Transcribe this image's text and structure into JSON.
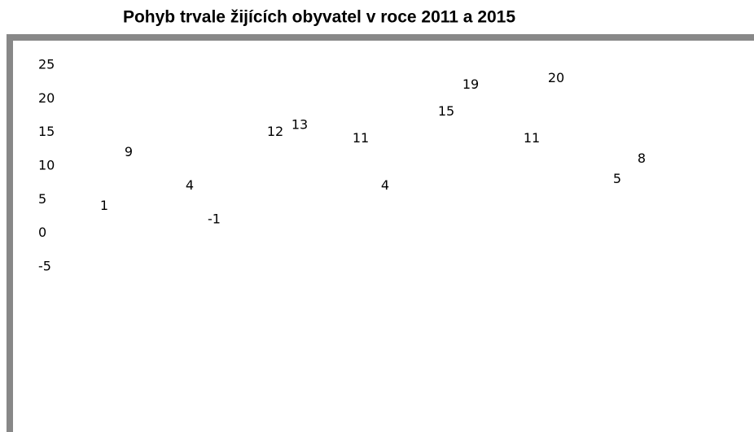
{
  "chart_data": {
    "type": "bar",
    "title": "Pohyb trvale žijících obyvatel v roce 2011 a 2015",
    "categories": [
      null,
      null,
      null,
      null,
      null,
      null,
      null
    ],
    "series": [
      {
        "values": [
          1,
          4,
          12,
          11,
          15,
          11,
          5
        ]
      },
      {
        "values": [
          9,
          -1,
          13,
          4,
          19,
          20,
          8
        ]
      }
    ],
    "ylim": [
      -5,
      25
    ],
    "yticks": [
      -5,
      0,
      5,
      10,
      15,
      20,
      25
    ]
  }
}
